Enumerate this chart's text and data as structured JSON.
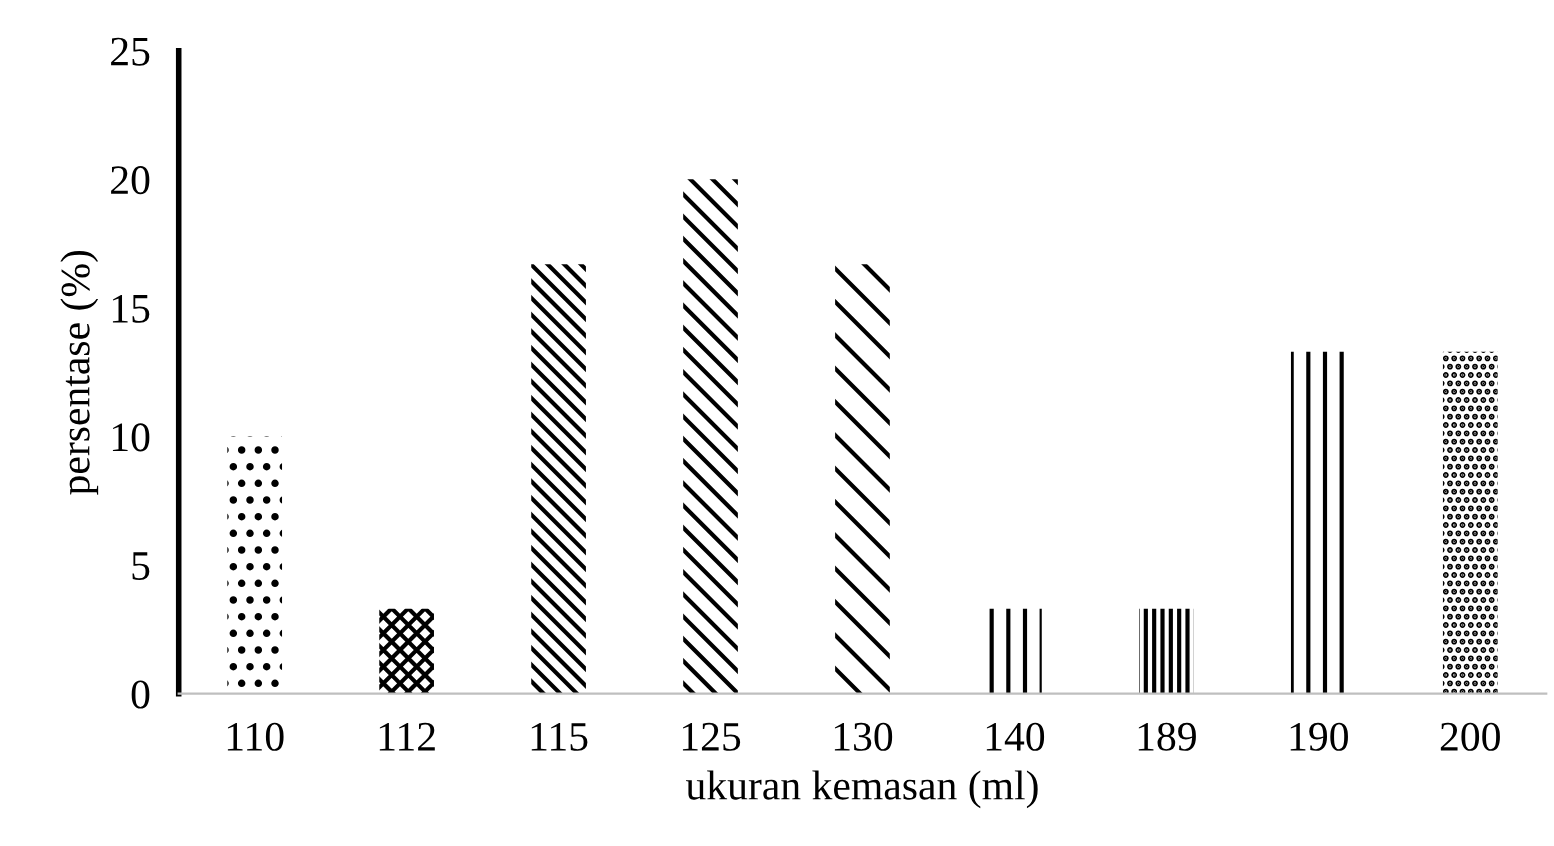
{
  "chart_data": {
    "type": "bar",
    "xlabel": "ukuran kemasan (ml)",
    "ylabel": "persentase (%)",
    "categories": [
      "110",
      "112",
      "115",
      "125",
      "130",
      "140",
      "189",
      "190",
      "200"
    ],
    "values": [
      10,
      3.3,
      16.7,
      20,
      16.7,
      3.3,
      3.3,
      13.3,
      13.3
    ],
    "colors": [
      "#000000",
      "#000000",
      "#000000",
      "#000000",
      "#000000",
      "#000000",
      "#000000",
      "#000000",
      "#000000"
    ],
    "ylim": [
      0,
      25
    ],
    "yticks": [
      0,
      5,
      10,
      15,
      20,
      25
    ],
    "grid": false,
    "legend": false
  }
}
